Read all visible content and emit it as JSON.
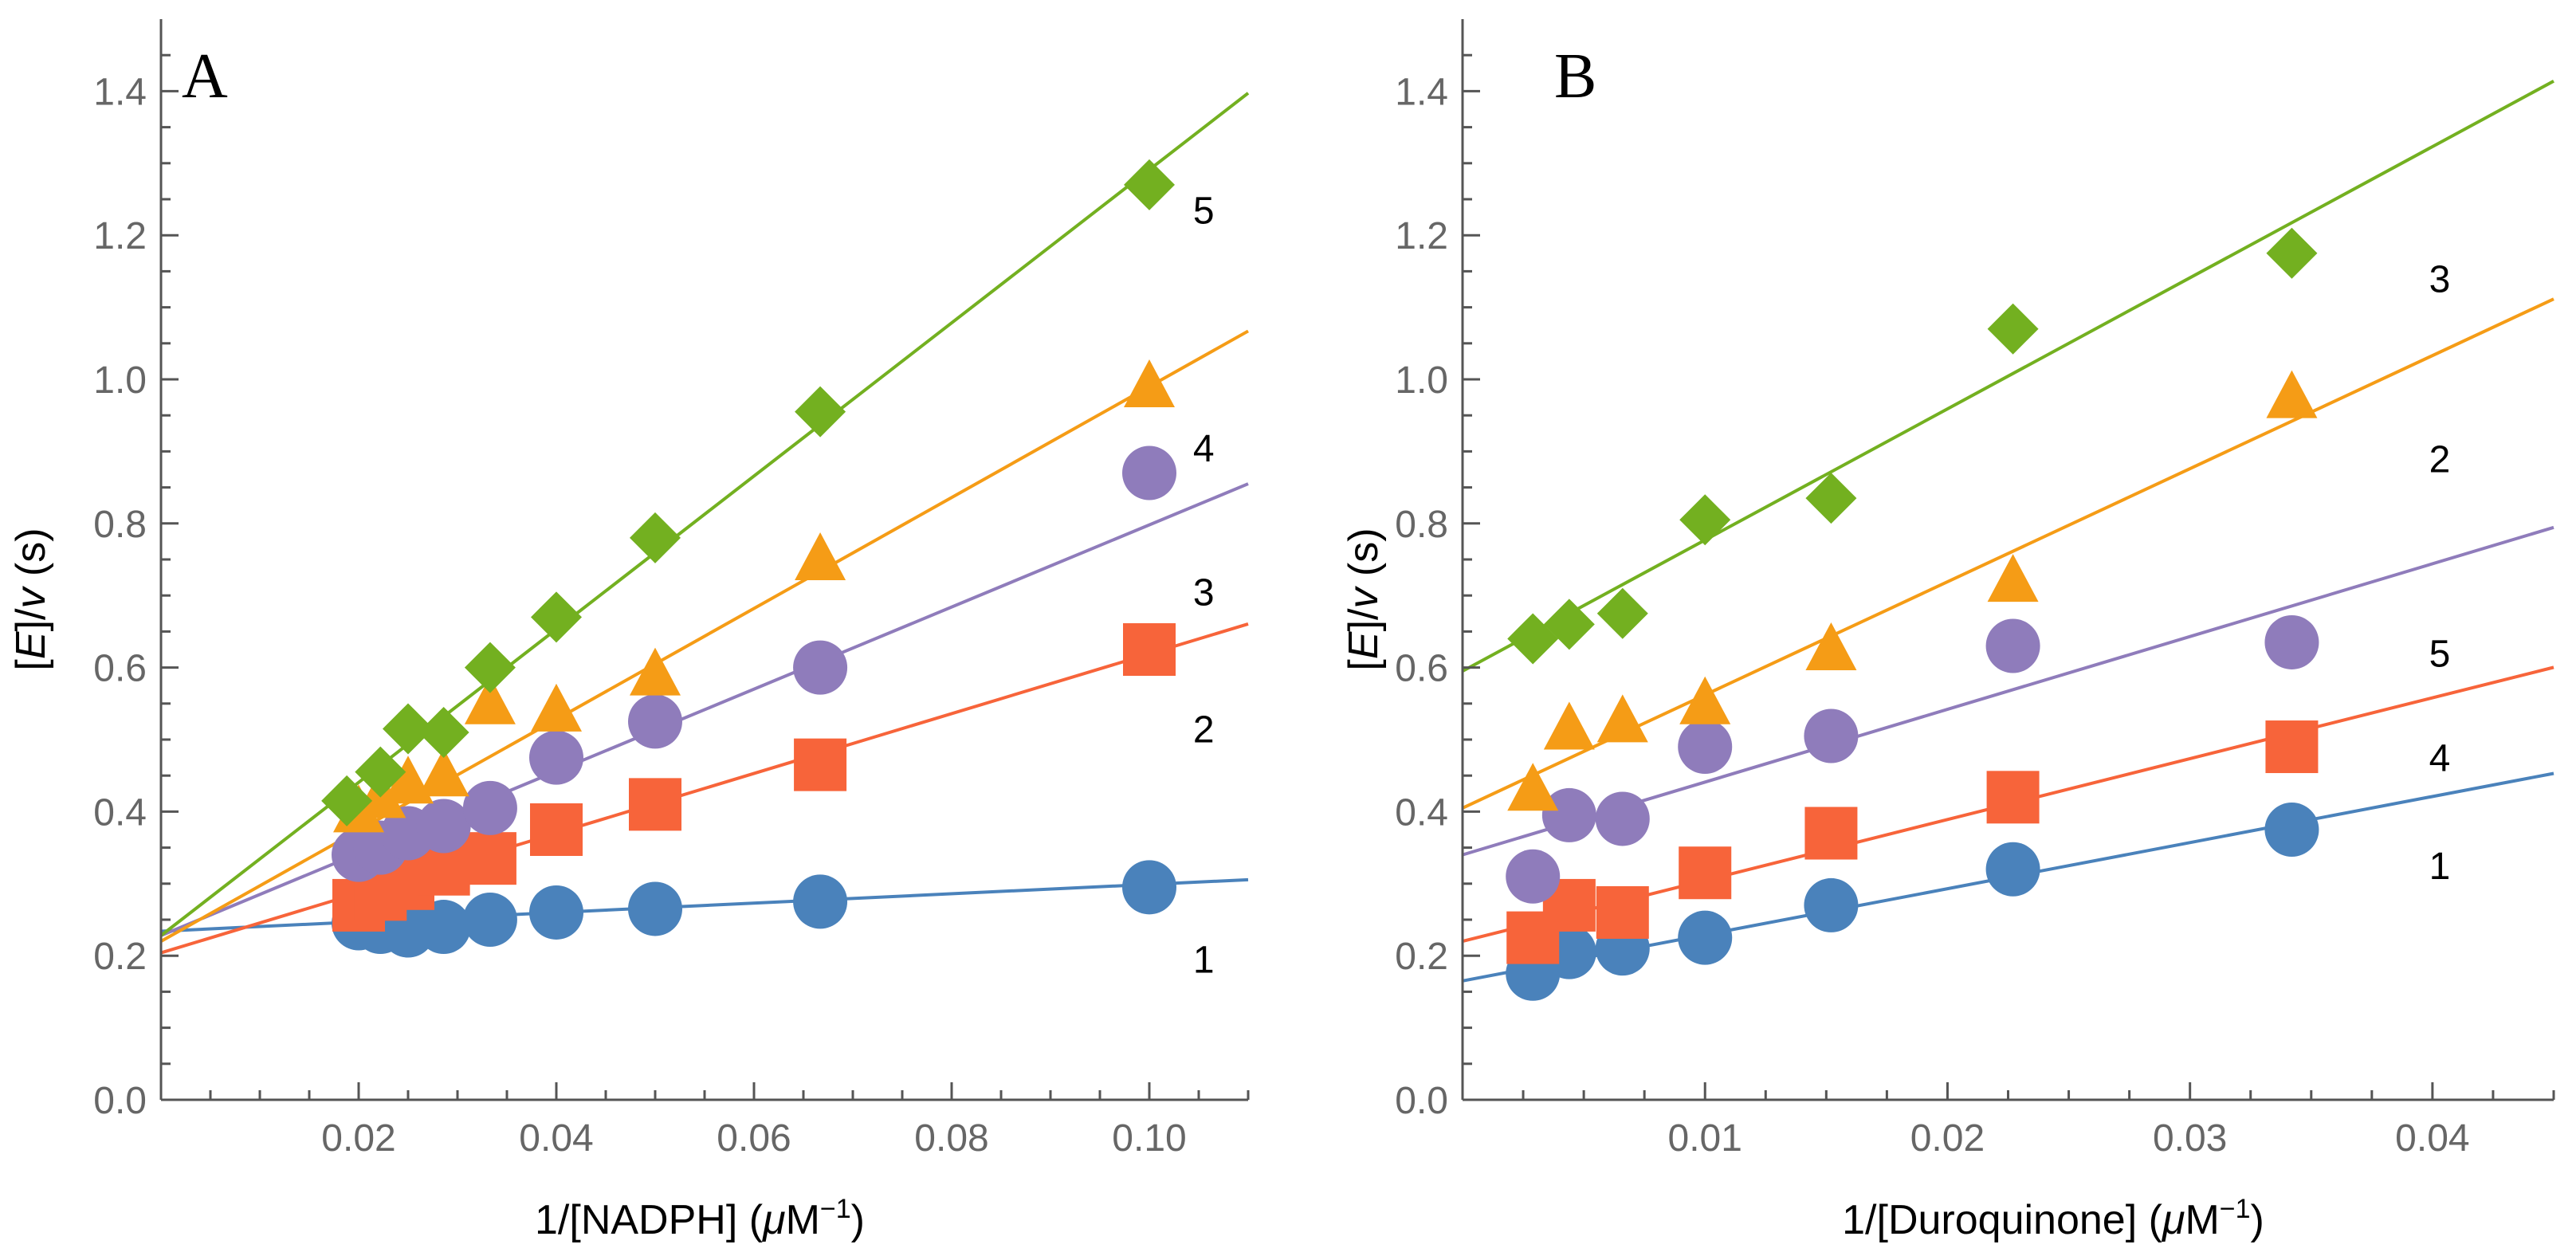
{
  "colors": {
    "axis": "#555555",
    "tick_label": "#666666",
    "s1": "#4a82bb",
    "s2": "#f7643a",
    "s3": "#8f7cbb",
    "s4": "#f59c16",
    "s5": "#73b020"
  },
  "chart_data": [
    {
      "type": "scatter",
      "panel_label": "A",
      "xlabel": "1/[NADPH] (μM⁻¹)",
      "xlabel_parts": {
        "base": "1/[NADPH] (",
        "mu": "μ",
        "unit": "M",
        "exp": "−1",
        "close": ")"
      },
      "ylabel_parts": {
        "open": "[",
        "E": "E",
        "mid": "]/",
        "v": "v",
        "unit": " (s)"
      },
      "xlim": [
        0,
        0.11
      ],
      "ylim": [
        0,
        1.5
      ],
      "xticks": [
        0.02,
        0.04,
        0.06,
        0.08,
        0.1
      ],
      "xtick_labels": [
        "0.02",
        "0.04",
        "0.06",
        "0.08",
        "0.10"
      ],
      "yticks": [
        0.0,
        0.2,
        0.4,
        0.6,
        0.8,
        1.0,
        1.2,
        1.4
      ],
      "ytick_labels": [
        "0.0",
        "0.2",
        "0.4",
        "0.6",
        "0.8",
        "1.0",
        "1.2",
        "1.4"
      ],
      "series": [
        {
          "id": "s1",
          "marker": "circle",
          "label": "1",
          "label_at": [
            0.1055,
            0.195
          ],
          "fit": [
            0.234,
            0.65
          ],
          "points": [
            [
              0.02,
              0.245
            ],
            [
              0.0222,
              0.24
            ],
            [
              0.025,
              0.235
            ],
            [
              0.0286,
              0.24
            ],
            [
              0.0333,
              0.25
            ],
            [
              0.04,
              0.26
            ],
            [
              0.05,
              0.265
            ],
            [
              0.0667,
              0.275
            ],
            [
              0.1,
              0.295
            ]
          ]
        },
        {
          "id": "s2",
          "marker": "square",
          "label": "2",
          "label_at": [
            0.1055,
            0.515
          ],
          "fit": [
            0.204,
            4.15
          ],
          "points": [
            [
              0.02,
              0.27
            ],
            [
              0.0222,
              0.285
            ],
            [
              0.025,
              0.3
            ],
            [
              0.0286,
              0.32
            ],
            [
              0.0333,
              0.335
            ],
            [
              0.04,
              0.375
            ],
            [
              0.05,
              0.41
            ],
            [
              0.0667,
              0.465
            ],
            [
              0.1,
              0.625
            ]
          ]
        },
        {
          "id": "s3",
          "marker": "circle",
          "label": "3",
          "label_at": [
            0.1055,
            0.705
          ],
          "fit": [
            0.228,
            5.7
          ],
          "points": [
            [
              0.02,
              0.34
            ],
            [
              0.0222,
              0.35
            ],
            [
              0.025,
              0.37
            ],
            [
              0.0286,
              0.38
            ],
            [
              0.0333,
              0.405
            ],
            [
              0.04,
              0.475
            ],
            [
              0.05,
              0.525
            ],
            [
              0.0667,
              0.6
            ],
            [
              0.1,
              0.87
            ]
          ]
        },
        {
          "id": "s4",
          "marker": "triangle",
          "label": "4",
          "label_at": [
            0.1055,
            0.905
          ],
          "fit": [
            0.22,
            7.7
          ],
          "points": [
            [
              0.02,
              0.4
            ],
            [
              0.0222,
              0.42
            ],
            [
              0.025,
              0.44
            ],
            [
              0.0286,
              0.45
            ],
            [
              0.0333,
              0.55
            ],
            [
              0.04,
              0.54
            ],
            [
              0.05,
              0.59
            ],
            [
              0.0667,
              0.75
            ],
            [
              0.1,
              0.99
            ]
          ]
        },
        {
          "id": "s5",
          "marker": "diamond",
          "label": "5",
          "label_at": [
            0.1055,
            1.235
          ],
          "fit": [
            0.228,
            10.63
          ],
          "points": [
            [
              0.0188,
              0.415
            ],
            [
              0.0222,
              0.455
            ],
            [
              0.025,
              0.515
            ],
            [
              0.0286,
              0.51
            ],
            [
              0.0333,
              0.6
            ],
            [
              0.04,
              0.67
            ],
            [
              0.05,
              0.78
            ],
            [
              0.0667,
              0.955
            ],
            [
              0.1,
              1.27
            ]
          ]
        }
      ]
    },
    {
      "type": "scatter",
      "panel_label": "B",
      "xlabel": "1/[Duroquinone] (μM⁻¹)",
      "xlabel_parts": {
        "base": "1/[Duroquinone] (",
        "mu": "μ",
        "unit": "M",
        "exp": "−1",
        "close": ")"
      },
      "ylabel_parts": {
        "open": "[",
        "E": "E",
        "mid": "]/",
        "v": "v",
        "unit": " (s)"
      },
      "xlim": [
        0,
        0.045
      ],
      "ylim": [
        0,
        1.5
      ],
      "xticks": [
        0.01,
        0.02,
        0.03,
        0.04
      ],
      "xtick_labels": [
        "0.01",
        "0.02",
        "0.03",
        "0.04"
      ],
      "yticks": [
        0.0,
        0.2,
        0.4,
        0.6,
        0.8,
        1.0,
        1.2,
        1.4
      ],
      "ytick_labels": [
        "0.0",
        "0.2",
        "0.4",
        "0.6",
        "0.8",
        "1.0",
        "1.2",
        "1.4"
      ],
      "series": [
        {
          "id": "s1",
          "marker": "circle",
          "label": "1",
          "label_at": [
            0.0403,
            0.325
          ],
          "fit": [
            0.165,
            6.4
          ],
          "points": [
            [
              0.0029,
              0.175
            ],
            [
              0.0044,
              0.205
            ],
            [
              0.0066,
              0.21
            ],
            [
              0.01,
              0.225
            ],
            [
              0.0152,
              0.27
            ],
            [
              0.0227,
              0.32
            ],
            [
              0.0342,
              0.375
            ]
          ]
        },
        {
          "id": "s2",
          "marker": "square",
          "label": "4",
          "label_at": [
            0.0403,
            0.475
          ],
          "fit": [
            0.22,
            8.45
          ],
          "points": [
            [
              0.0029,
              0.225
            ],
            [
              0.0044,
              0.27
            ],
            [
              0.0066,
              0.26
            ],
            [
              0.01,
              0.315
            ],
            [
              0.0152,
              0.37
            ],
            [
              0.0227,
              0.42
            ],
            [
              0.0342,
              0.49
            ]
          ]
        },
        {
          "id": "s3",
          "marker": "circle",
          "label": "5",
          "label_at": [
            0.0403,
            0.62
          ],
          "fit": [
            0.34,
            10.1
          ],
          "points": [
            [
              0.0029,
              0.31
            ],
            [
              0.0044,
              0.395
            ],
            [
              0.0066,
              0.39
            ],
            [
              0.01,
              0.49
            ],
            [
              0.0152,
              0.505
            ],
            [
              0.0227,
              0.63
            ],
            [
              0.0342,
              0.635
            ]
          ]
        },
        {
          "id": "s4",
          "marker": "triangle",
          "label": "2",
          "label_at": [
            0.0403,
            0.89
          ],
          "fit": [
            0.405,
            15.7
          ],
          "points": [
            [
              0.0029,
              0.43
            ],
            [
              0.0044,
              0.515
            ],
            [
              0.0066,
              0.525
            ],
            [
              0.01,
              0.55
            ],
            [
              0.0152,
              0.625
            ],
            [
              0.0227,
              0.72
            ],
            [
              0.0342,
              0.975
            ]
          ]
        },
        {
          "id": "s5",
          "marker": "diamond",
          "label": "3",
          "label_at": [
            0.0403,
            1.14
          ],
          "fit": [
            0.595,
            18.2
          ],
          "points": [
            [
              0.0029,
              0.64
            ],
            [
              0.0044,
              0.66
            ],
            [
              0.0066,
              0.675
            ],
            [
              0.01,
              0.805
            ],
            [
              0.0152,
              0.835
            ],
            [
              0.0227,
              1.07
            ],
            [
              0.0342,
              1.175
            ]
          ]
        }
      ]
    }
  ]
}
